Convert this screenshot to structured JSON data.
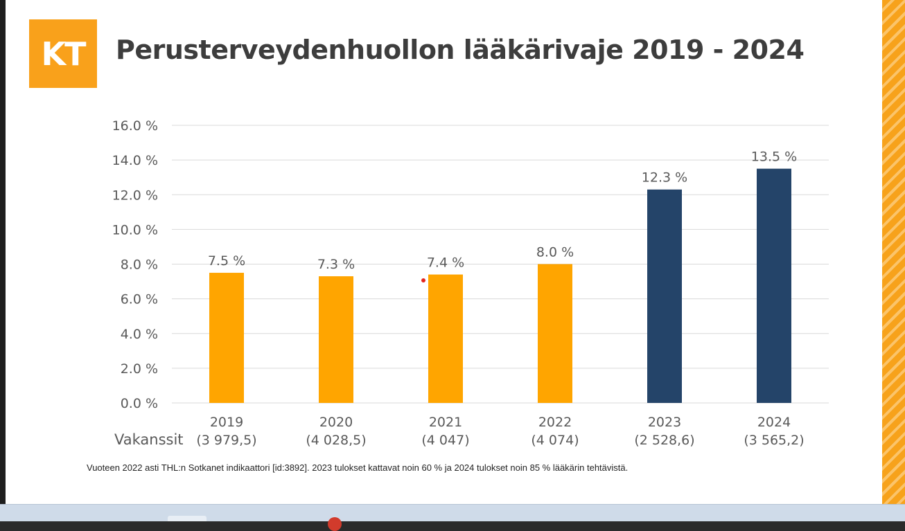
{
  "logo_text": "KT",
  "title": "Perusterveydenhuollon lääkärivaje 2019 - 2024",
  "footnote": "Vuoteen 2022 asti THL:n Sotkanet indikaattori [id:3892]. 2023 tulokset kattavat noin 60 % ja 2024 tulokset noin 85 % lääkärin tehtävistä.",
  "colors": {
    "orange": "#ffa500",
    "navy": "#244469",
    "grid": "#d9d9d9",
    "text": "#595959"
  },
  "chart_data": {
    "type": "bar",
    "title": "Perusterveydenhuollon lääkärivaje 2019 - 2024",
    "xlabel": "",
    "ylabel": "",
    "ylim": [
      0,
      16
    ],
    "yticks": [
      "0.0 %",
      "2.0 %",
      "4.0 %",
      "6.0 %",
      "8.0 %",
      "10.0 %",
      "12.0 %",
      "14.0 %",
      "16.0 %"
    ],
    "row_label": "Vakanssit",
    "categories": [
      "2019",
      "2020",
      "2021",
      "2022",
      "2023",
      "2024"
    ],
    "sublabels": [
      "(3 979,5)",
      "(4 028,5)",
      "(4 047)",
      "(4 074)",
      "(2 528,6)",
      "(3 565,2)"
    ],
    "values": [
      7.5,
      7.3,
      7.4,
      8.0,
      12.3,
      13.5
    ],
    "value_labels": [
      "7.5 %",
      "7.3 %",
      "7.4 %",
      "8.0 %",
      "12.3 %",
      "13.5 %"
    ],
    "bar_colors": [
      "#ffa500",
      "#ffa500",
      "#ffa500",
      "#ffa500",
      "#244469",
      "#244469"
    ],
    "grid": true,
    "legend": "none"
  }
}
